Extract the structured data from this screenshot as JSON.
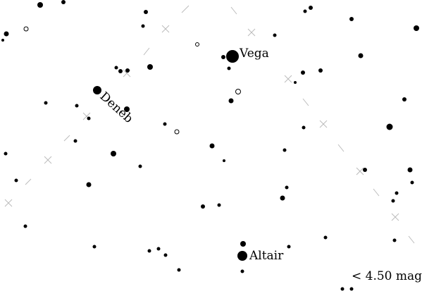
{
  "map": {
    "type": "star-chart",
    "colors": {
      "background": "#ffffff",
      "star": "#000000",
      "asterism": "#bbbbbb"
    },
    "labels": {
      "vega": "Vega",
      "deneb": "Deneb",
      "altair": "Altair",
      "magnitude_limit": "< 4.50 mag"
    },
    "named_stars": [
      {
        "id": "vega",
        "name": "Vega"
      },
      {
        "id": "deneb",
        "name": "Deneb"
      },
      {
        "id": "altair",
        "name": "Altair"
      }
    ]
  }
}
